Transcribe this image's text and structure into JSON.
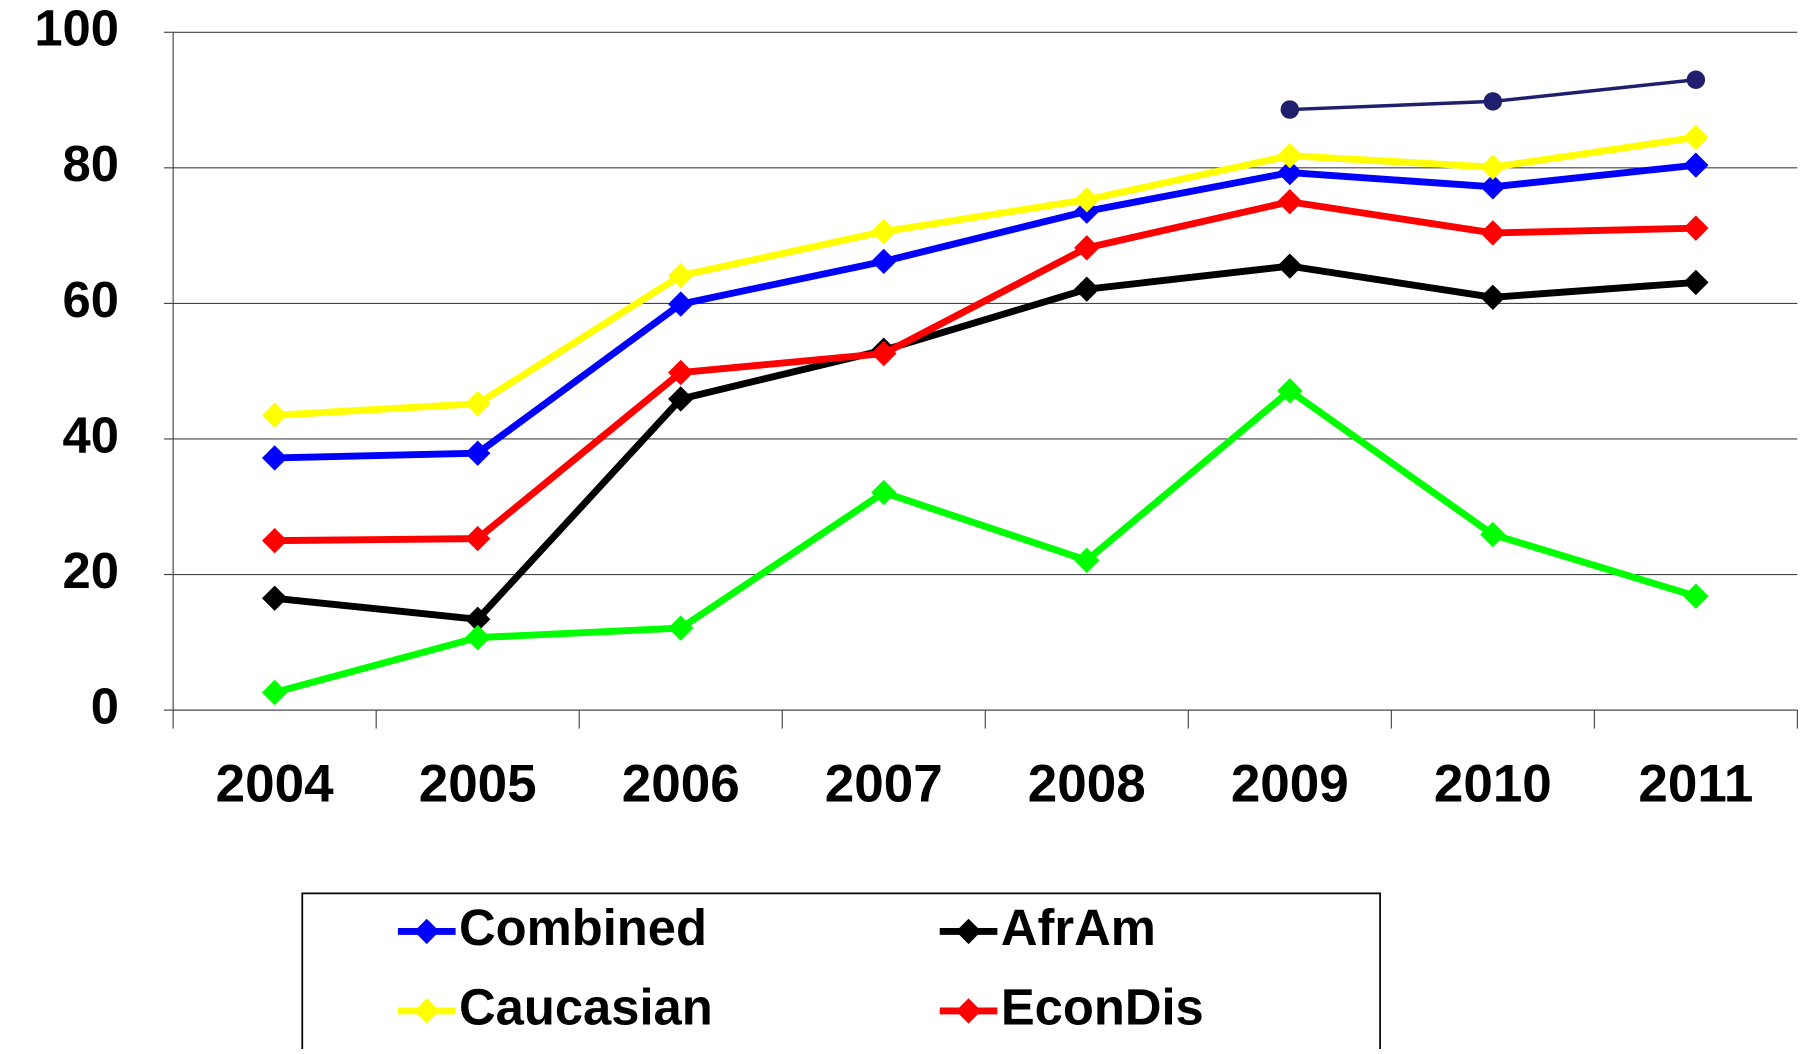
{
  "chart_data": {
    "type": "line",
    "categories": [
      "2004",
      "2005",
      "2006",
      "2007",
      "2008",
      "2009",
      "2010",
      "2011"
    ],
    "series": [
      {
        "name": "Combined",
        "color": "#0000ff",
        "marker": "diamond",
        "values": [
          37.2,
          37.9,
          59.9,
          66.2,
          73.6,
          79.3,
          77.2,
          80.4
        ]
      },
      {
        "name": "AfrAm",
        "color": "#000000",
        "marker": "diamond",
        "values": [
          16.5,
          13.4,
          45.9,
          53.1,
          62.1,
          65.5,
          60.9,
          63.1
        ]
      },
      {
        "name": "Caucasian",
        "color": "#ffff00",
        "marker": "diamond",
        "values": [
          43.5,
          45.2,
          64.1,
          70.6,
          75.3,
          81.8,
          80.1,
          84.5
        ]
      },
      {
        "name": "EconDis",
        "color": "#ff0000",
        "marker": "diamond",
        "values": [
          25.0,
          25.3,
          49.8,
          52.6,
          68.2,
          75.0,
          70.4,
          71.1
        ]
      },
      {
        "color": "#00ff00",
        "marker": "diamond",
        "values": [
          2.6,
          10.7,
          12.1,
          32.1,
          22.1,
          47.1,
          25.9,
          16.8
        ]
      },
      {
        "color": "#1f1f6e",
        "marker": "circle",
        "values": [
          null,
          null,
          null,
          null,
          null,
          88.6,
          89.8,
          93.0
        ]
      }
    ],
    "ylim": [
      0,
      100
    ],
    "yticks": [
      0,
      20,
      40,
      60,
      80,
      100
    ],
    "grid": true,
    "legend": "bottom"
  }
}
